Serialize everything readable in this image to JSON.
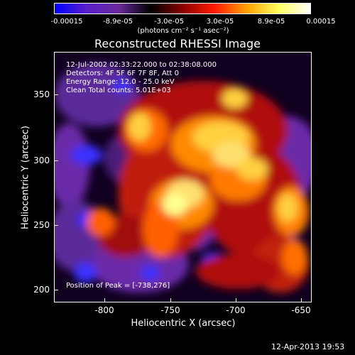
{
  "colorbar": {
    "labels": [
      "-0.00015",
      "-8.9e-05",
      "-3.0e-05",
      "3.0e-05",
      "8.9e-05",
      "0.00015"
    ],
    "unit_label": "(photons cm⁻² s⁻¹ asec⁻²)",
    "colors": [
      "#0000ff",
      "#5a1ec8",
      "#6a2a9a",
      "#000000",
      "#8a0000",
      "#ff1a00",
      "#ffa000",
      "#ffff60",
      "#ffffff"
    ]
  },
  "title": "Reconstructed RHESSI Image",
  "info": {
    "time_range": "12-Jul-2002 02:33:22.000 to 02:38:08.000",
    "detectors": "Detectors: 4F 5F 6F 7F 8F, Att 0",
    "energy_range": "Energy Range: 12.0 - 25.0 keV",
    "clean_counts": "Clean     Total counts: 5.01E+03",
    "peak_position": "Position of Peak = [-738,276]"
  },
  "axes": {
    "xlabel": "Heliocentric X (arcsec)",
    "ylabel": "Heliocentric Y (arcsec)",
    "xticks": [
      "-800",
      "-750",
      "-700",
      "-650"
    ],
    "yticks": [
      "350",
      "300",
      "250",
      "200"
    ],
    "xrange": [
      -840,
      -645
    ],
    "yrange": [
      190,
      380
    ]
  },
  "footer": {
    "timestamp": "12-Apr-2013 19:53"
  }
}
